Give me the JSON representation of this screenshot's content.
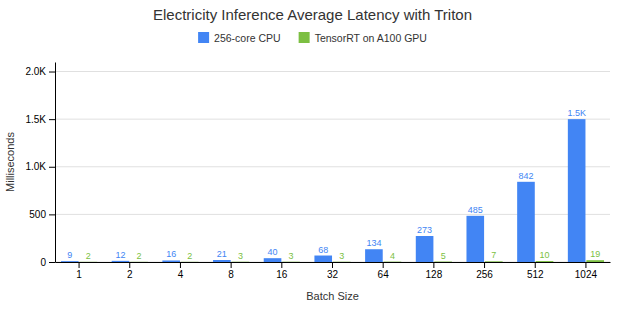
{
  "chart_data": {
    "type": "bar",
    "title": "Electricity Inference Average Latency with Triton",
    "x_label": "Batch Size",
    "y_label": "Milliseconds",
    "categories": [
      "1",
      "2",
      "4",
      "8",
      "16",
      "32",
      "64",
      "128",
      "256",
      "512",
      "1024"
    ],
    "series": [
      {
        "name": "256-core CPU",
        "color": "#4285F4",
        "values": [
          9,
          12,
          16,
          21,
          40,
          68,
          134,
          273,
          485,
          842,
          1500
        ],
        "value_labels": [
          "9",
          "12",
          "16",
          "21",
          "40",
          "68",
          "134",
          "273",
          "485",
          "842",
          "1.5K"
        ]
      },
      {
        "name": "TensorRT on A100 GPU",
        "color": "#7CBF42",
        "values": [
          2,
          2,
          2,
          3,
          3,
          3,
          4,
          5,
          7,
          10,
          19
        ]
      }
    ],
    "ylim": [
      0,
      2100
    ],
    "yticks": [
      0,
      500,
      {
        "value": 1000,
        "label": "1.0K"
      },
      {
        "value": 1500,
        "label": "1.5K"
      },
      {
        "value": 2000,
        "label": "2.0K"
      }
    ],
    "grid": true,
    "legend": "top",
    "data_labels": true
  }
}
